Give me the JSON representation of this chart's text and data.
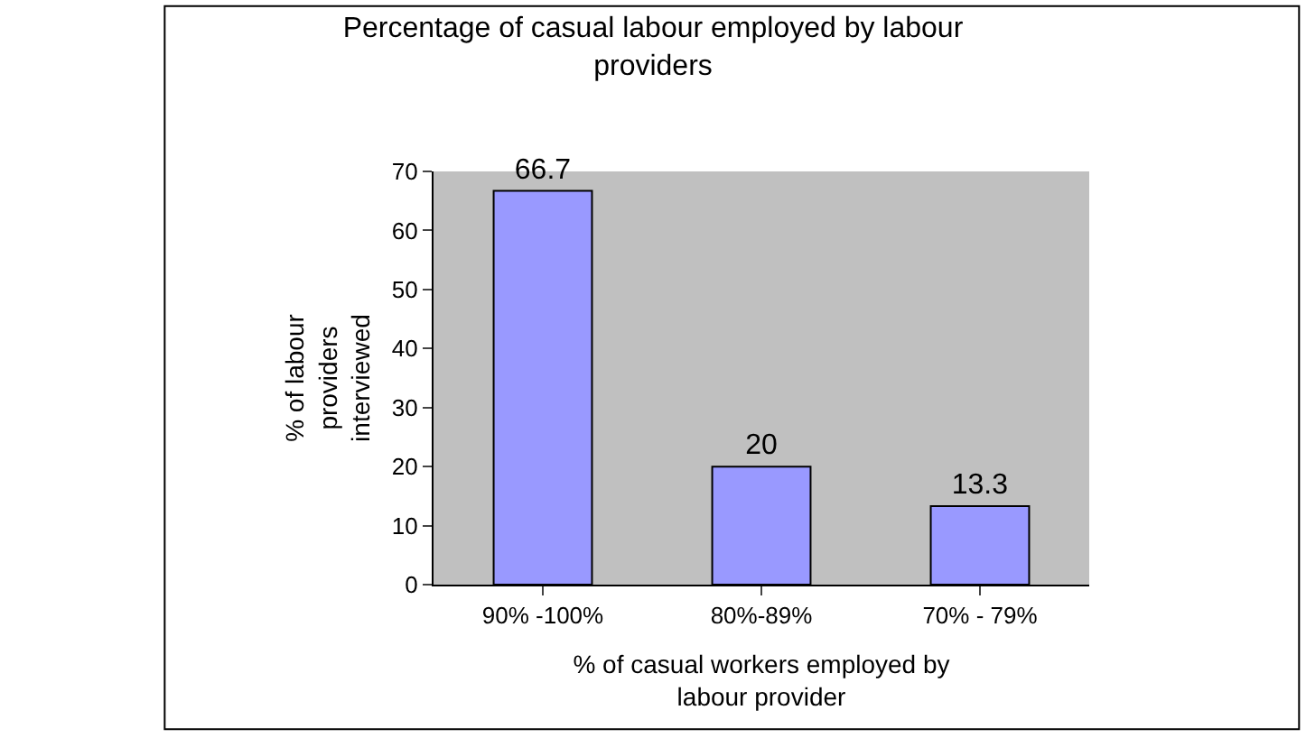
{
  "chart_data": {
    "type": "bar",
    "title": "Percentage of casual labour employed by labour providers",
    "xlabel": "% of casual workers employed by labour provider",
    "ylabel": "% of labour providers interviewed",
    "categories": [
      "90% -100%",
      "80%-89%",
      "70% - 79%"
    ],
    "values": [
      66.7,
      20,
      13.3
    ],
    "color": "#9999ff",
    "data_labels": true,
    "ylim": [
      0,
      70
    ],
    "yticks": [
      0,
      10,
      20,
      30,
      40,
      50,
      60,
      70
    ],
    "grid": false
  }
}
